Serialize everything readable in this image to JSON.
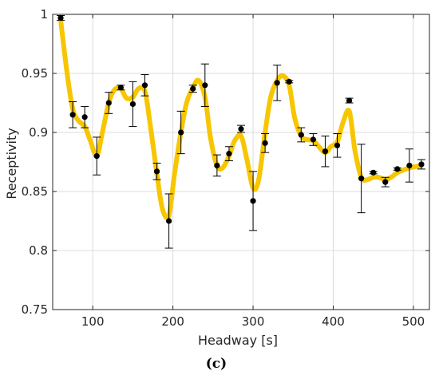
{
  "chart_data": {
    "type": "scatter",
    "xlabel": "Headway [s]",
    "ylabel": "Receptivity",
    "panel_label": "(c)",
    "xlim": [
      50,
      520
    ],
    "ylim": [
      0.75,
      1.0
    ],
    "xticks": [
      100,
      200,
      300,
      400,
      500
    ],
    "yticks": [
      0.75,
      0.8,
      0.85,
      0.9,
      0.95,
      1
    ],
    "xtick_labels": [
      "100",
      "200",
      "300",
      "400",
      "500"
    ],
    "ytick_labels": [
      "0.75",
      "0.8",
      "0.85",
      "0.9",
      "0.95",
      "1"
    ],
    "grid": true,
    "curve_color": "#F7C600",
    "marker_color": "#000000",
    "points": [
      {
        "x": 60,
        "y": 0.997,
        "err": 0.002
      },
      {
        "x": 75,
        "y": 0.915,
        "err": 0.011
      },
      {
        "x": 90,
        "y": 0.913,
        "err": 0.009
      },
      {
        "x": 105,
        "y": 0.88,
        "err": 0.016
      },
      {
        "x": 120,
        "y": 0.925,
        "err": 0.009
      },
      {
        "x": 135,
        "y": 0.938,
        "err": 0.002
      },
      {
        "x": 150,
        "y": 0.924,
        "err": 0.019
      },
      {
        "x": 165,
        "y": 0.94,
        "err": 0.009
      },
      {
        "x": 180,
        "y": 0.867,
        "err": 0.007
      },
      {
        "x": 195,
        "y": 0.825,
        "err": 0.023
      },
      {
        "x": 210,
        "y": 0.9,
        "err": 0.018
      },
      {
        "x": 225,
        "y": 0.937,
        "err": 0.003
      },
      {
        "x": 240,
        "y": 0.94,
        "err": 0.018
      },
      {
        "x": 255,
        "y": 0.872,
        "err": 0.009
      },
      {
        "x": 270,
        "y": 0.882,
        "err": 0.006
      },
      {
        "x": 285,
        "y": 0.903,
        "err": 0.003
      },
      {
        "x": 300,
        "y": 0.842,
        "err": 0.025
      },
      {
        "x": 315,
        "y": 0.891,
        "err": 0.008
      },
      {
        "x": 330,
        "y": 0.942,
        "err": 0.015
      },
      {
        "x": 345,
        "y": 0.943,
        "err": 0.001
      },
      {
        "x": 360,
        "y": 0.898,
        "err": 0.006
      },
      {
        "x": 375,
        "y": 0.894,
        "err": 0.005
      },
      {
        "x": 390,
        "y": 0.884,
        "err": 0.013
      },
      {
        "x": 405,
        "y": 0.889,
        "err": 0.01
      },
      {
        "x": 420,
        "y": 0.927,
        "err": 0.002
      },
      {
        "x": 435,
        "y": 0.861,
        "err": 0.029
      },
      {
        "x": 450,
        "y": 0.866,
        "err": 0.001
      },
      {
        "x": 465,
        "y": 0.858,
        "err": 0.004
      },
      {
        "x": 480,
        "y": 0.869,
        "err": 0.001
      },
      {
        "x": 495,
        "y": 0.872,
        "err": 0.014
      },
      {
        "x": 510,
        "y": 0.873,
        "err": 0.004
      }
    ],
    "fit_curve": {
      "x": [
        60,
        68,
        75,
        82,
        90,
        97,
        105,
        112,
        120,
        127,
        135,
        142,
        150,
        157,
        165,
        172,
        180,
        187,
        195,
        202,
        210,
        217,
        225,
        232,
        240,
        247,
        255,
        262,
        270,
        277,
        285,
        292,
        300,
        307,
        315,
        322,
        330,
        337,
        345,
        352,
        360,
        367,
        375,
        382,
        390,
        397,
        405,
        412,
        420,
        427,
        435,
        442,
        450,
        457,
        465,
        472,
        480,
        487,
        495,
        502,
        510
      ],
      "y": [
        0.995,
        0.95,
        0.92,
        0.91,
        0.905,
        0.893,
        0.88,
        0.9,
        0.925,
        0.936,
        0.937,
        0.929,
        0.93,
        0.937,
        0.935,
        0.905,
        0.865,
        0.835,
        0.83,
        0.865,
        0.9,
        0.925,
        0.938,
        0.944,
        0.93,
        0.895,
        0.872,
        0.87,
        0.88,
        0.893,
        0.897,
        0.878,
        0.853,
        0.86,
        0.9,
        0.93,
        0.944,
        0.948,
        0.94,
        0.912,
        0.897,
        0.894,
        0.893,
        0.888,
        0.883,
        0.888,
        0.892,
        0.908,
        0.918,
        0.885,
        0.862,
        0.86,
        0.862,
        0.862,
        0.86,
        0.862,
        0.866,
        0.868,
        0.87,
        0.871,
        0.872
      ]
    }
  }
}
